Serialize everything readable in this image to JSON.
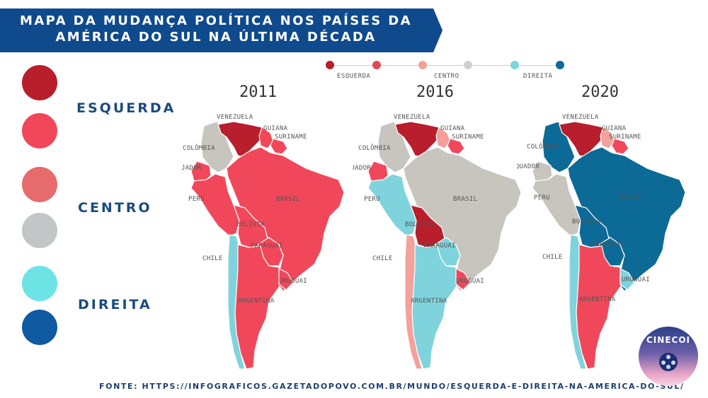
{
  "title": "MAPA DA MUDANÇA POLÍTICA NOS PAÍSES DA AMÉRICA DO SUL NA ÚLTIMA DÉCADA",
  "legend": {
    "left": [
      "ESQUERDA",
      "CENTRO",
      "DIREITA"
    ],
    "scale_labels": [
      "ESQUERDA",
      "CENTRO",
      "DIREITA"
    ]
  },
  "colors": {
    "esquerda_strong": "#b81e2b",
    "esquerda": "#f0485a",
    "centro_esquerda": "#f3a19a",
    "centro": "#c8c4be",
    "direita": "#7fd3dc",
    "direita_strong": "#0c6a96",
    "banner": "#0f4a8c"
  },
  "maps": [
    {
      "year": "2011",
      "countries": {
        "venezuela": "esquerda_strong",
        "colombia": "centro",
        "guiana": "esquerda",
        "suriname": "esquerda",
        "equador": "esquerda",
        "peru": "esquerda",
        "brasil": "esquerda",
        "bolivia": "esquerda",
        "paraguai": "esquerda",
        "chile": "direita",
        "argentina": "esquerda",
        "uruguai": "esquerda"
      }
    },
    {
      "year": "2016",
      "countries": {
        "venezuela": "esquerda_strong",
        "colombia": "centro",
        "guiana": "centro_esquerda",
        "suriname": "esquerda",
        "equador": "esquerda",
        "peru": "direita",
        "brasil": "centro",
        "bolivia": "esquerda_strong",
        "paraguai": "direita",
        "chile": "centro_esquerda",
        "argentina": "direita",
        "uruguai": "esquerda"
      }
    },
    {
      "year": "2020",
      "countries": {
        "venezuela": "esquerda_strong",
        "colombia": "direita_strong",
        "guiana": "centro_esquerda",
        "suriname": "esquerda",
        "equador": "centro",
        "peru": "centro",
        "brasil": "direita_strong",
        "bolivia": "direita_strong",
        "paraguai": "direita_strong",
        "chile": "direita",
        "argentina": "esquerda",
        "uruguai": "direita"
      }
    }
  ],
  "country_labels": {
    "venezuela": "VENEZUELA",
    "guiana": "GUIANA",
    "suriname": "SURINAME",
    "colombia": "COLÔMBIA",
    "equador": "EQUADOR",
    "peru": "PERU",
    "brasil": "BRASIL",
    "bolivia": "BOLÍVIA",
    "paraguai": "PARAGUAI",
    "chile": "CHILE",
    "uruguai": "URUGUAI",
    "argentina": "ARGENTINA"
  },
  "map_label_2011_colombia": "COLÔMBIA",
  "map_label_2011_equador": "JADOR",
  "map_label_2016_colombia": "COLÔMBIA",
  "map_label_2016_equador": "EQUADOR",
  "map_label_2020_colombia": "COLÔMBIA",
  "map_label_2020_equador": "EQUADOR",
  "source": "FONTE: HTTPS://INFOGRAFICOS.GAZETADOPOVO.COM.BR/MUNDO/ESQUERDA-E-DIREITA-NA-AMERICA-DO-SUL/",
  "logo_text": "CINECOI"
}
